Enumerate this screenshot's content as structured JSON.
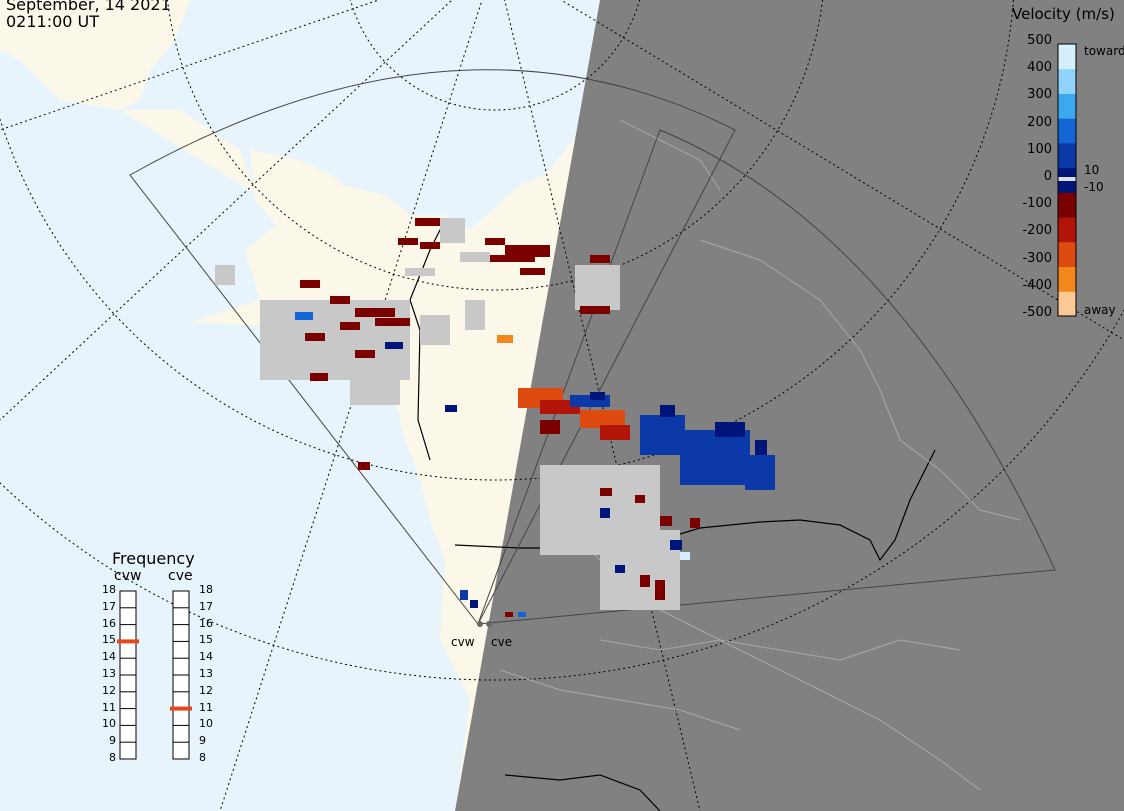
{
  "header": {
    "date": "September, 14 2021",
    "time": "0211:00 UT"
  },
  "colorbar": {
    "title": "Velocity (m/s)",
    "ticks": [
      "500",
      "400",
      "300",
      "200",
      "100",
      "0",
      "-100",
      "-200",
      "-300",
      "-400",
      "-500"
    ],
    "label_toward": "toward",
    "label_away": "away",
    "label_pos": "10",
    "label_neg": "-10",
    "colors": [
      "#d6efff",
      "#8fd3fb",
      "#3ca8ee",
      "#1466d6",
      "#0b3aa8",
      "#00157a",
      "#7a0000",
      "#b21508",
      "#de4b10",
      "#f3871c",
      "#fcc995"
    ]
  },
  "frequency": {
    "title": "Frequency",
    "radars": [
      "cvw",
      "cve"
    ],
    "scale": [
      "18",
      "17",
      "16",
      "15",
      "14",
      "13",
      "12",
      "11",
      "10",
      "9",
      "8"
    ],
    "selected_mhz": [
      15,
      11
    ],
    "marker_color": "#e8471d"
  },
  "map": {
    "radar_sites": [
      "cvw",
      "cve"
    ],
    "colors": {
      "ocean": "#e8f4fb",
      "land": "#fbf8e9",
      "night": "#818181",
      "ground_scatter": "#c8c8c8"
    }
  }
}
